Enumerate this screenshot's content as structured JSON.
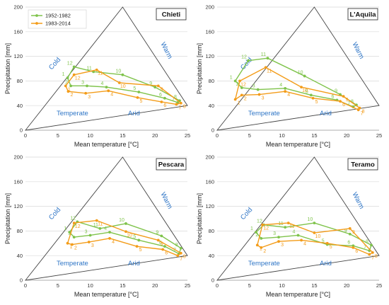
{
  "figure": {
    "legend": [
      {
        "label": "1952-1982",
        "color": "#7fc34b"
      },
      {
        "label": "1983-2014",
        "color": "#f39c19"
      }
    ],
    "xlabel": "Mean temperature [°C]",
    "ylabel": "Precipitation [mm]",
    "zones": {
      "cold": "Cold",
      "warm": "Warm",
      "temperate": "Temperate",
      "arid": "Arid"
    }
  },
  "chart_data": [
    {
      "type": "line",
      "title": "Chieti",
      "xlabel": "Mean temperature [°C]",
      "ylabel": "Precipitation [mm]",
      "xlim": [
        0,
        25
      ],
      "ylim": [
        0,
        200
      ],
      "xticks": [
        0,
        5,
        10,
        15,
        20,
        25
      ],
      "yticks": [
        0,
        40,
        80,
        120,
        160,
        200
      ],
      "legend_position": "top-left",
      "triangle": [
        [
          0,
          0
        ],
        [
          15,
          200
        ],
        [
          25,
          40
        ]
      ],
      "point_labels": [
        "1",
        "2",
        "3",
        "4",
        "5",
        "6",
        "7",
        "8",
        "9",
        "10",
        "11",
        "12"
      ],
      "series": [
        {
          "name": "1952-1982",
          "color": "#7fc34b",
          "temperature": [
            6.5,
            7.0,
            9.5,
            12.5,
            17.5,
            21.5,
            23.5,
            23.8,
            20.0,
            15.0,
            10.5,
            7.5
          ],
          "precipitation": [
            85,
            72,
            72,
            70,
            62,
            52,
            45,
            48,
            70,
            90,
            95,
            103
          ]
        },
        {
          "name": "1983-2014",
          "color": "#f39c19",
          "temperature": [
            6.2,
            6.6,
            9.3,
            12.8,
            17.3,
            21.0,
            23.3,
            24.0,
            20.5,
            14.5,
            11.0,
            7.5
          ],
          "precipitation": [
            72,
            63,
            60,
            64,
            53,
            46,
            42,
            44,
            72,
            77,
            98,
            90
          ]
        }
      ]
    },
    {
      "type": "line",
      "title": "L'Aquila",
      "xlabel": "Mean temperature [°C]",
      "ylabel": "Precipitation [mm]",
      "xlim": [
        0,
        25
      ],
      "ylim": [
        0,
        200
      ],
      "xticks": [
        0,
        5,
        10,
        15,
        20,
        25
      ],
      "yticks": [
        0,
        40,
        80,
        120,
        160,
        200
      ],
      "triangle": [
        [
          0,
          0
        ],
        [
          15,
          200
        ],
        [
          25,
          40
        ]
      ],
      "point_labels": [
        "1",
        "2",
        "3",
        "4",
        "5",
        "6",
        "7",
        "8",
        "9",
        "10",
        "11",
        "12"
      ],
      "series": [
        {
          "name": "1952-1982",
          "color": "#7fc34b",
          "temperature": [
            2.8,
            3.8,
            6.3,
            10.5,
            14.5,
            18.5,
            21.0,
            21.5,
            19.0,
            13.5,
            7.8,
            4.8
          ],
          "precipitation": [
            80,
            69,
            66,
            68,
            57,
            49,
            38,
            41,
            58,
            88,
            117,
            113
          ]
        },
        {
          "name": "1983-2014",
          "color": "#f39c19",
          "temperature": [
            2.8,
            3.8,
            6.5,
            10.5,
            14.8,
            19.0,
            21.8,
            22.0,
            19.5,
            13.0,
            7.5,
            3.5
          ],
          "precipitation": [
            50,
            57,
            58,
            63,
            52,
            47,
            33,
            36,
            55,
            70,
            102,
            80
          ]
        }
      ]
    },
    {
      "type": "line",
      "title": "Pescara",
      "xlabel": "Mean temperature [°C]",
      "ylabel": "Precipitation [mm]",
      "xlim": [
        0,
        25
      ],
      "ylim": [
        0,
        200
      ],
      "xticks": [
        0,
        5,
        10,
        15,
        20,
        25
      ],
      "yticks": [
        0,
        40,
        80,
        120,
        160,
        200
      ],
      "triangle": [
        [
          0,
          0
        ],
        [
          15,
          200
        ],
        [
          25,
          40
        ]
      ],
      "point_labels": [
        "1",
        "2",
        "3",
        "4",
        "5",
        "6",
        "7",
        "8",
        "9",
        "10",
        "11",
        "12"
      ],
      "series": [
        {
          "name": "1952-1982",
          "color": "#7fc34b",
          "temperature": [
            6.8,
            7.5,
            10.0,
            13.0,
            17.5,
            21.5,
            23.7,
            24.0,
            21.0,
            15.5,
            11.5,
            8.0
          ],
          "precipitation": [
            78,
            70,
            73,
            78,
            65,
            55,
            43,
            52,
            72,
            92,
            84,
            95
          ]
        },
        {
          "name": "1983-2014",
          "color": "#f39c19",
          "temperature": [
            6.5,
            7.2,
            9.8,
            13.0,
            17.2,
            21.2,
            23.5,
            24.0,
            20.5,
            15.5,
            11.0,
            7.5
          ],
          "precipitation": [
            60,
            58,
            62,
            68,
            55,
            50,
            40,
            44,
            65,
            79,
            97,
            93
          ]
        }
      ]
    },
    {
      "type": "line",
      "title": "Teramo",
      "xlabel": "Mean temperature [°C]",
      "ylabel": "Precipitation [mm]",
      "xlim": [
        0,
        25
      ],
      "ylim": [
        0,
        200
      ],
      "xticks": [
        0,
        5,
        10,
        15,
        20,
        25
      ],
      "yticks": [
        0,
        40,
        80,
        120,
        160,
        200
      ],
      "triangle": [
        [
          0,
          0
        ],
        [
          15,
          200
        ],
        [
          25,
          40
        ]
      ],
      "point_labels": [
        "1",
        "2",
        "3",
        "4",
        "5",
        "6",
        "7",
        "8",
        "9",
        "10",
        "11",
        "12"
      ],
      "series": [
        {
          "name": "1952-1982",
          "color": "#7fc34b",
          "temperature": [
            6.0,
            6.8,
            9.5,
            12.5,
            17.0,
            21.0,
            23.5,
            23.8,
            20.5,
            15.0,
            10.5,
            7.2
          ],
          "precipitation": [
            78,
            68,
            70,
            73,
            58,
            56,
            48,
            57,
            75,
            93,
            86,
            90
          ]
        },
        {
          "name": "1983-2014",
          "color": "#f39c19",
          "temperature": [
            6.2,
            6.8,
            9.5,
            13.0,
            17.0,
            21.0,
            23.5,
            24.0,
            20.5,
            15.0,
            11.0,
            7.0
          ],
          "precipitation": [
            57,
            53,
            63,
            65,
            60,
            53,
            42,
            45,
            84,
            77,
            93,
            90
          ]
        }
      ]
    }
  ]
}
